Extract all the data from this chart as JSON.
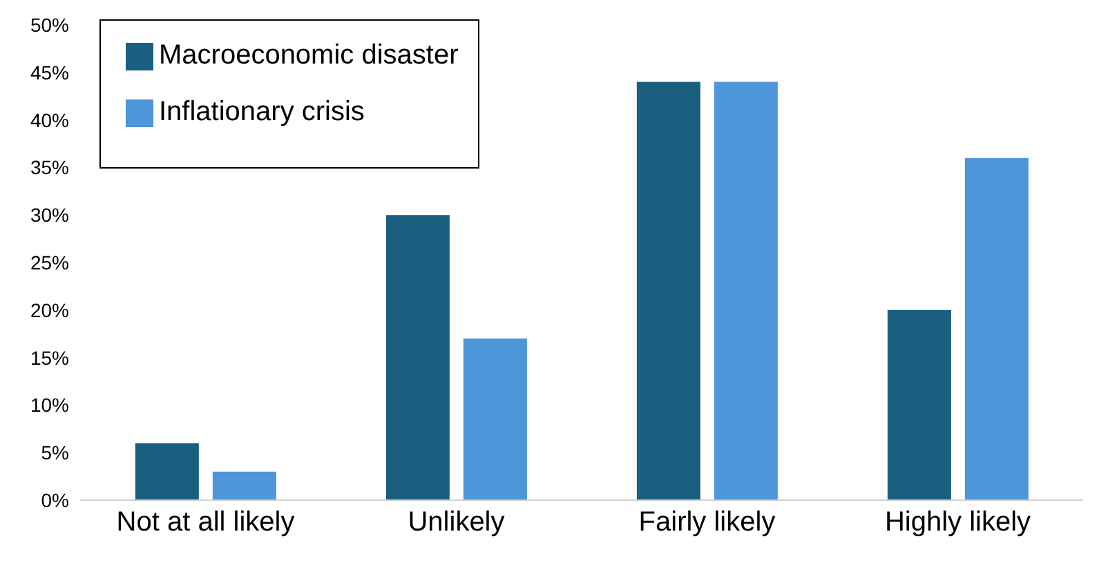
{
  "chart_data": {
    "type": "bar",
    "categories": [
      "Not at all likely",
      "Unlikely",
      "Fairly likely",
      "Highly likely"
    ],
    "series": [
      {
        "name": "Macroeconomic disaster",
        "color": "#1a5e80",
        "values": [
          6,
          30,
          44,
          20
        ]
      },
      {
        "name": "Inflationary crisis",
        "color": "#4f95d9",
        "values": [
          3,
          17,
          44,
          36
        ]
      }
    ],
    "ylim": [
      0,
      50
    ],
    "yticks": [
      {
        "value": 0,
        "label": "0%"
      },
      {
        "value": 5,
        "label": "5%"
      },
      {
        "value": 10,
        "label": "10%"
      },
      {
        "value": 15,
        "label": "15%"
      },
      {
        "value": 20,
        "label": "20%"
      },
      {
        "value": 25,
        "label": "25%"
      },
      {
        "value": 30,
        "label": "30%"
      },
      {
        "value": 35,
        "label": "35%"
      },
      {
        "value": 40,
        "label": "40%"
      },
      {
        "value": 45,
        "label": "45%"
      },
      {
        "value": 50,
        "label": "50%"
      }
    ],
    "grid": false,
    "legend": "top left"
  }
}
